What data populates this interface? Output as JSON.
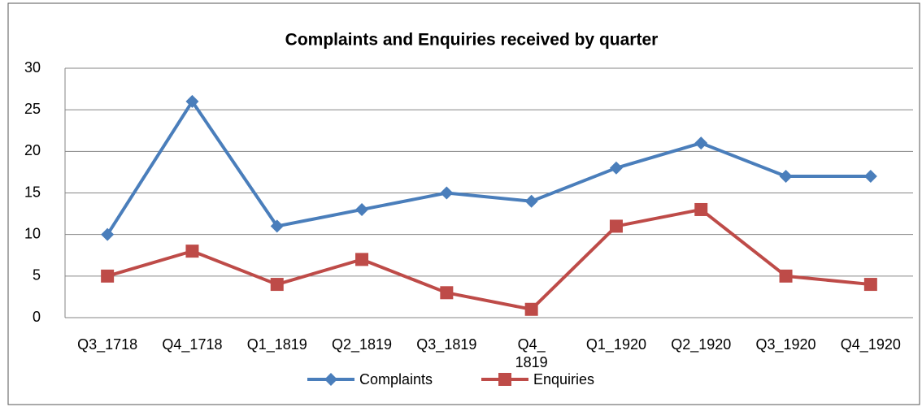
{
  "chart_data": {
    "type": "line",
    "title": "Complaints and Enquiries received by quarter",
    "categories": [
      "Q3_1718",
      "Q4_1718",
      "Q1_1819",
      "Q2_1819",
      "Q3_1819",
      "Q4_ 1819",
      "Q1_1920",
      "Q2_1920",
      "Q3_1920",
      "Q4_1920"
    ],
    "series": [
      {
        "name": "Complaints",
        "color": "#4a7ebb",
        "marker": "diamond",
        "values": [
          10,
          26,
          11,
          13,
          15,
          14,
          18,
          21,
          17,
          17
        ]
      },
      {
        "name": "Enquiries",
        "color": "#be4b48",
        "marker": "square",
        "values": [
          5,
          8,
          4,
          7,
          3,
          1,
          11,
          13,
          5,
          4
        ]
      }
    ],
    "ylim": [
      0,
      30
    ],
    "yticks": [
      0,
      5,
      10,
      15,
      20,
      25,
      30
    ],
    "grid": true,
    "legend": "bottom"
  }
}
